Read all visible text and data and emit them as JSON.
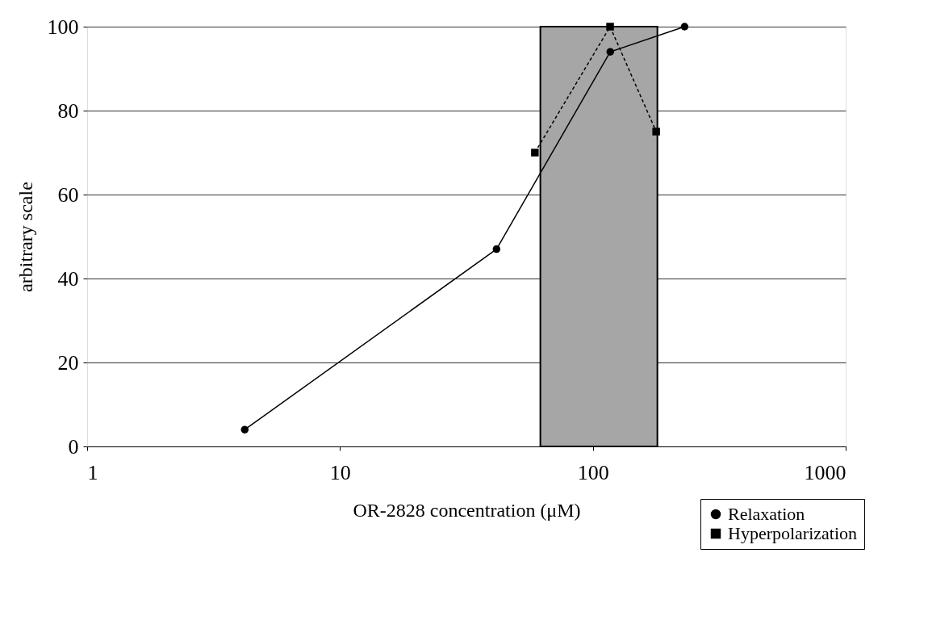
{
  "chart_data": {
    "type": "line",
    "xlabel": "OR-2828 concentration (μM)",
    "ylabel": "arbitrary scale",
    "log": "x",
    "xlim": [
      1,
      1000
    ],
    "xticks": [
      1,
      10,
      100,
      1000
    ],
    "ylim": [
      0,
      100
    ],
    "yticks": [
      0,
      20,
      40,
      60,
      80,
      100
    ],
    "grid": "y",
    "legend": "bottom right",
    "bands": [
      {
        "axis": "x",
        "from": 62,
        "to": 180,
        "color": "#a6a6a6"
      }
    ],
    "series": [
      {
        "name": "Relaxation",
        "color": "#000000",
        "marker": "circle",
        "line_style": "solid",
        "x": [
          4.2,
          41.6,
          117.2,
          230.6
        ],
        "values": [
          4,
          47,
          94,
          100
        ]
      },
      {
        "name": "Hyperpolarization",
        "color": "#000000",
        "marker": "square",
        "line_style": "dashed",
        "x": [
          59,
          117,
          178
        ],
        "values": [
          70,
          100,
          75
        ]
      }
    ]
  }
}
